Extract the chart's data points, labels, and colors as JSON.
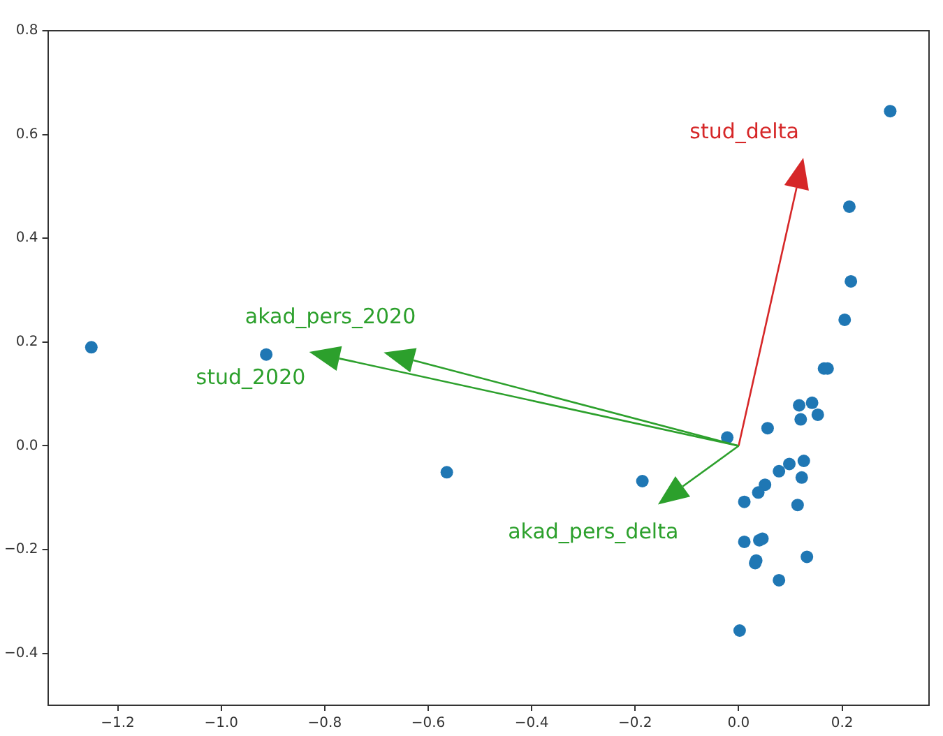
{
  "chart_data": {
    "type": "scatter",
    "xlim": [
      -1.335,
      0.368
    ],
    "ylim": [
      -0.5,
      0.8
    ],
    "xticks": [
      {
        "value": -1.2,
        "label": "−1.2"
      },
      {
        "value": -1.0,
        "label": "−1.0"
      },
      {
        "value": -0.8,
        "label": "−0.8"
      },
      {
        "value": -0.6,
        "label": "−0.6"
      },
      {
        "value": -0.4,
        "label": "−0.4"
      },
      {
        "value": -0.2,
        "label": "−0.2"
      },
      {
        "value": 0,
        "label": "0.0"
      },
      {
        "value": 0.2,
        "label": "0.2"
      }
    ],
    "yticks": [
      {
        "value": -0.4,
        "label": "−0.4"
      },
      {
        "value": -0.2,
        "label": "−0.2"
      },
      {
        "value": 0,
        "label": "0.0"
      },
      {
        "value": 0.2,
        "label": "0.2"
      },
      {
        "value": 0.4,
        "label": "0.4"
      },
      {
        "value": 0.6,
        "label": "0.6"
      },
      {
        "value": 0.8,
        "label": "0.8"
      }
    ],
    "grid": false,
    "legend": false,
    "marker": "circle",
    "series": [
      {
        "color": "#1f77b4",
        "x": [
          0.293,
          0.214,
          0.217,
          0.205,
          0.165,
          0.172,
          0.117,
          0.142,
          0.153,
          0.12,
          0.056,
          -0.022,
          -0.186,
          0.126,
          0.098,
          0.078,
          0.122,
          0.051,
          0.038,
          0.011,
          0.114,
          0.011,
          0.04,
          0.046,
          0.132,
          0.034,
          0.032,
          0.078,
          0.002,
          -1.251,
          -0.913,
          -0.564
        ],
        "values": [
          0.645,
          0.461,
          0.317,
          0.243,
          0.149,
          0.149,
          0.078,
          0.083,
          0.06,
          0.051,
          0.034,
          0.016,
          -0.068,
          -0.029,
          -0.035,
          -0.049,
          -0.061,
          -0.075,
          -0.09,
          -0.108,
          -0.114,
          -0.185,
          -0.182,
          -0.179,
          -0.214,
          -0.221,
          -0.226,
          -0.259,
          -0.356,
          0.19,
          0.176,
          -0.051
        ]
      }
    ],
    "annotations": [
      "stud_delta",
      "akad_pers_2020",
      "stud_2020",
      "akad_pers_delta"
    ]
  }
}
